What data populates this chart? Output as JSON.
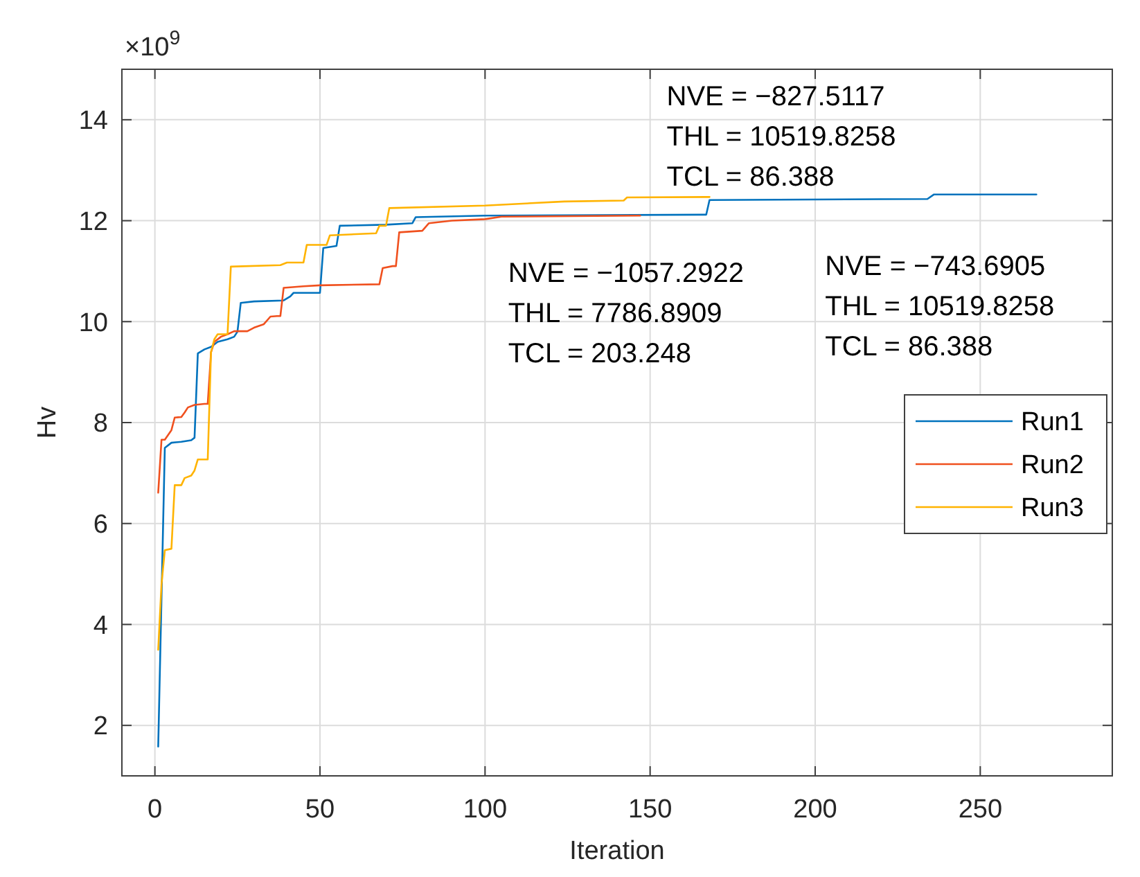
{
  "chart_data": {
    "type": "line",
    "xlabel": "Iteration",
    "ylabel": "Hv",
    "annotations": [
      "×10$^{9}$",
      "NVE = −1057.2922\nTHL = 7786.8909\nTCL = 203.248",
      "NVE = −827.5117\nTHL = 10519.8258\nTCL = 86.388",
      "NVE = −743.6905\nTHL = 10519.8258\nTCL = 86.388"
    ],
    "xlim": [
      -10,
      290
    ],
    "xticks": [
      0,
      50,
      100,
      150,
      200,
      250
    ],
    "ylim": [
      1,
      15
    ],
    "yticks": [
      2,
      4,
      6,
      8,
      10,
      12,
      14
    ],
    "grid": true,
    "legend": "right",
    "line_style": "solid",
    "marker": "none",
    "series": [
      {
        "name": "Run1",
        "color": "#0072bd",
        "x": [
          1,
          3,
          5,
          8,
          11,
          12,
          13,
          15,
          17,
          19,
          22,
          24,
          25,
          26,
          30,
          39,
          41,
          42,
          50,
          51,
          55,
          56,
          70,
          78,
          79,
          100,
          167,
          168,
          234,
          236,
          267
        ],
        "values": [
          1.58,
          7.5,
          7.6,
          7.62,
          7.65,
          7.7,
          9.37,
          9.45,
          9.5,
          9.6,
          9.65,
          9.7,
          9.8,
          10.37,
          10.4,
          10.42,
          10.5,
          10.57,
          10.57,
          11.46,
          11.5,
          11.9,
          11.92,
          11.95,
          12.07,
          12.1,
          12.12,
          12.41,
          12.43,
          12.52,
          12.52
        ]
      },
      {
        "name": "Run2",
        "color": "#f0501e",
        "x": [
          1,
          2,
          3,
          5,
          6,
          8,
          9,
          10,
          12,
          15,
          16,
          17,
          18,
          20,
          22,
          24,
          28,
          30,
          33,
          35,
          37,
          38,
          39,
          45,
          50,
          68,
          69,
          72,
          73,
          74,
          81,
          83,
          90,
          100,
          105,
          147
        ],
        "values": [
          6.61,
          7.66,
          7.66,
          7.85,
          8.1,
          8.11,
          8.2,
          8.3,
          8.35,
          8.37,
          8.37,
          9.39,
          9.6,
          9.7,
          9.75,
          9.81,
          9.81,
          9.88,
          9.95,
          10.1,
          10.11,
          10.11,
          10.67,
          10.7,
          10.72,
          10.74,
          11.06,
          11.1,
          11.1,
          11.77,
          11.8,
          11.95,
          12.0,
          12.03,
          12.08,
          12.1
        ]
      },
      {
        "name": "Run3",
        "color": "#ffb300",
        "x": [
          1,
          2,
          3,
          5,
          6,
          8,
          9,
          11,
          12,
          13,
          16,
          17,
          18,
          19,
          22,
          23,
          38,
          40,
          45,
          46,
          52,
          53,
          67,
          68,
          70,
          71,
          100,
          124,
          142,
          143,
          168
        ],
        "values": [
          3.5,
          4.8,
          5.47,
          5.5,
          6.76,
          6.76,
          6.9,
          6.95,
          7.05,
          7.27,
          7.27,
          9.4,
          9.65,
          9.75,
          9.75,
          11.09,
          11.12,
          11.17,
          11.17,
          11.52,
          11.52,
          11.71,
          11.75,
          11.9,
          11.9,
          12.25,
          12.3,
          12.38,
          12.4,
          12.46,
          12.47
        ]
      }
    ]
  }
}
